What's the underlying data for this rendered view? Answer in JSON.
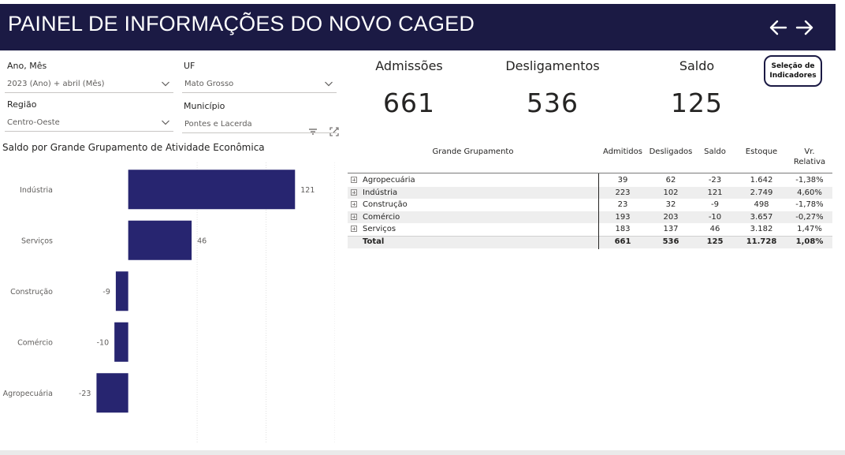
{
  "header": {
    "title": "PAINEL DE INFORMAÇÕES DO NOVO CAGED"
  },
  "filters": {
    "ano_mes": {
      "label": "Ano, Mês",
      "value": "2023 (Ano) + abril (Mês)"
    },
    "uf": {
      "label": "UF",
      "value": "Mato Grosso"
    },
    "regiao": {
      "label": "Região",
      "value": "Centro-Oeste"
    },
    "municipio": {
      "label": "Município",
      "value": "Pontes e Lacerda"
    }
  },
  "kpis": {
    "admissoes": {
      "label": "Admissões",
      "value": "661"
    },
    "desligamentos": {
      "label": "Desligamentos",
      "value": "536"
    },
    "saldo": {
      "label": "Saldo",
      "value": "125"
    }
  },
  "indicator_button": {
    "label": "Seleção de Indicadores"
  },
  "chart_data": {
    "type": "bar",
    "orientation": "horizontal",
    "title": "Saldo por Grande Grupamento de Atividade Econômica",
    "categories": [
      "Indústria",
      "Serviços",
      "Construção",
      "Comércio",
      "Agropecuária"
    ],
    "values": [
      121,
      46,
      -9,
      -10,
      -23
    ],
    "xlim": [
      -93,
      150
    ],
    "grid": true,
    "bar_color": "#272570"
  },
  "table": {
    "headers": {
      "grupo": "Grande Grupamento",
      "admitidos": "Admitidos",
      "desligados": "Desligados",
      "saldo": "Saldo",
      "estoque": "Estoque",
      "vr_line1": "Vr.",
      "vr_line2": "Relativa"
    },
    "rows": [
      {
        "name": "Agropecuária",
        "admitidos": "39",
        "desligados": "62",
        "saldo": "-23",
        "estoque": "1.642",
        "vr": "-1,38%"
      },
      {
        "name": "Indústria",
        "admitidos": "223",
        "desligados": "102",
        "saldo": "121",
        "estoque": "2.749",
        "vr": "4,60%"
      },
      {
        "name": "Construção",
        "admitidos": "23",
        "desligados": "32",
        "saldo": "-9",
        "estoque": "498",
        "vr": "-1,78%"
      },
      {
        "name": "Comércio",
        "admitidos": "193",
        "desligados": "203",
        "saldo": "-10",
        "estoque": "3.657",
        "vr": "-0,27%"
      },
      {
        "name": "Serviços",
        "admitidos": "183",
        "desligados": "137",
        "saldo": "46",
        "estoque": "3.182",
        "vr": "1,47%"
      }
    ],
    "total": {
      "name": "Total",
      "admitidos": "661",
      "desligados": "536",
      "saldo": "125",
      "estoque": "11.728",
      "vr": "1,08%"
    }
  },
  "colors": {
    "header_bg": "#1b1a44",
    "bar": "#272570"
  }
}
